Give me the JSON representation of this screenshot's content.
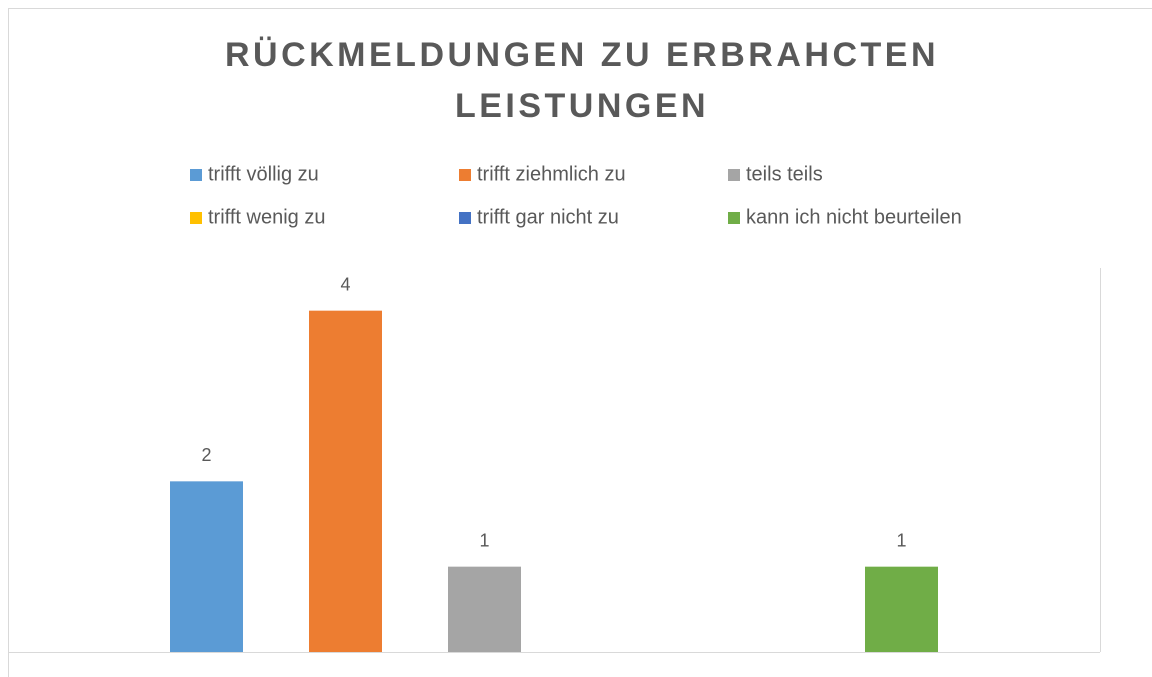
{
  "chart_data": {
    "type": "bar",
    "title": "RÜCKMELDUNGEN ZU ERBRAHCTEN",
    "subtitle": "LEISTUNGEN",
    "categories": [
      null
    ],
    "series": [
      {
        "name": "trifft völlig zu",
        "color": "#5b9bd5",
        "values": [
          2
        ]
      },
      {
        "name": "trifft ziehmlich zu",
        "color": "#ed7d31",
        "values": [
          4
        ]
      },
      {
        "name": "teils teils",
        "color": "#a5a5a5",
        "values": [
          1
        ]
      },
      {
        "name": "trifft wenig zu",
        "color": "#ffc000",
        "values": [
          null
        ]
      },
      {
        "name": "trifft gar nicht zu",
        "color": "#4472c4",
        "values": [
          null
        ]
      },
      {
        "name": "kann ich nicht beurteilen",
        "color": "#70ad47",
        "values": [
          1
        ]
      }
    ],
    "ylim": [
      0,
      4.5
    ],
    "legend": "top",
    "data_labels": true
  }
}
